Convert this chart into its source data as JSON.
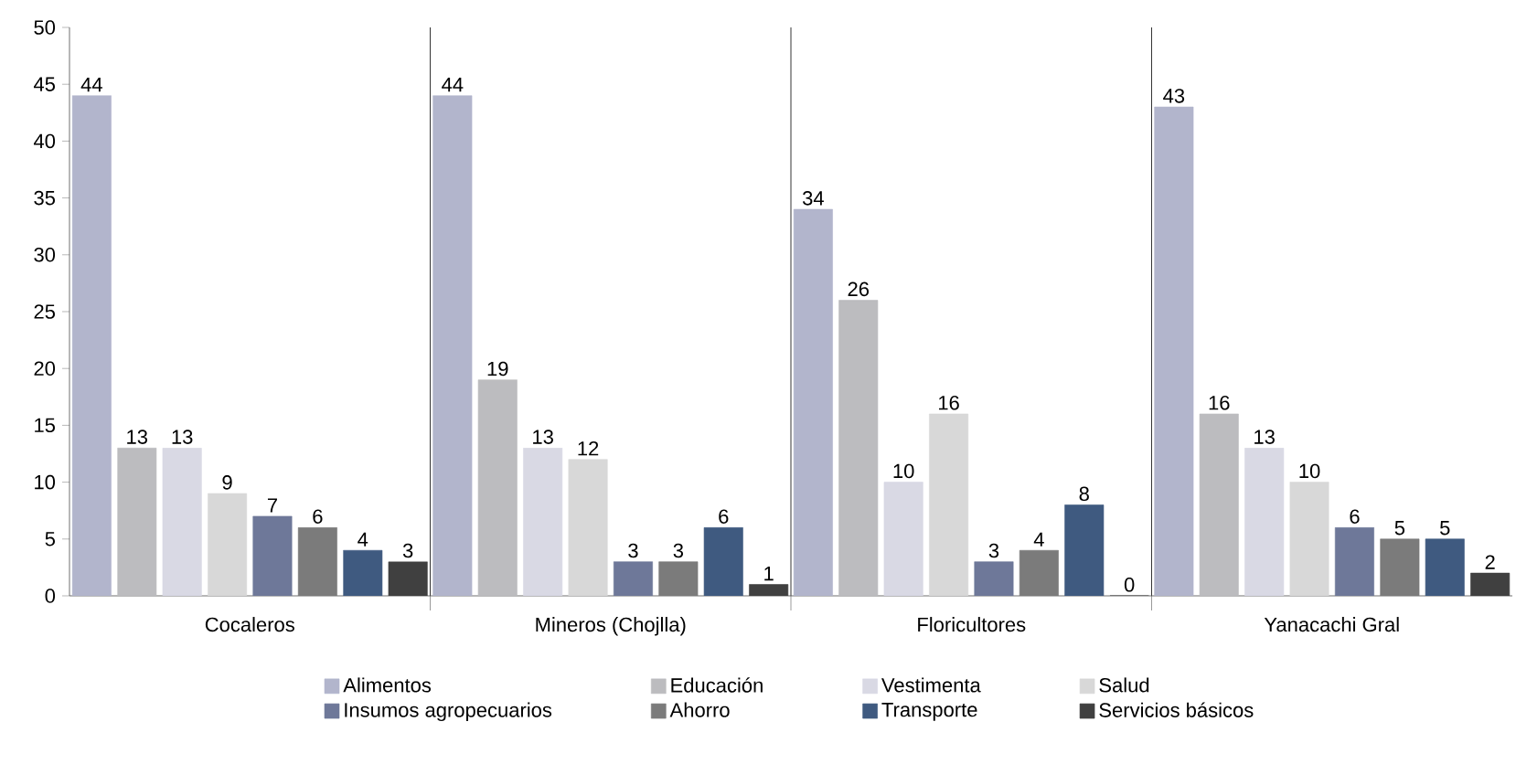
{
  "chart_data": {
    "type": "bar",
    "categories": [
      "Cocaleros",
      "Mineros (Chojlla)",
      "Floricultores",
      "Yanacachi Gral"
    ],
    "series": [
      {
        "name": "Alimentos",
        "color": "#b2b5cc",
        "values": [
          44,
          44,
          34,
          43
        ]
      },
      {
        "name": "Educación",
        "color": "#bcbcbf",
        "values": [
          13,
          19,
          26,
          16
        ]
      },
      {
        "name": "Vestimenta",
        "color": "#d9d9e4",
        "values": [
          13,
          13,
          10,
          13
        ]
      },
      {
        "name": "Salud",
        "color": "#d8d8d8",
        "values": [
          9,
          12,
          16,
          10
        ]
      },
      {
        "name": "Insumos agropecuarios",
        "color": "#6e7899",
        "values": [
          7,
          3,
          3,
          6
        ]
      },
      {
        "name": "Ahorro",
        "color": "#7b7b7b",
        "values": [
          6,
          3,
          4,
          5
        ]
      },
      {
        "name": "Transporte",
        "color": "#3f5a80",
        "values": [
          4,
          6,
          8,
          5
        ]
      },
      {
        "name": "Servicios básicos",
        "color": "#404040",
        "values": [
          3,
          1,
          0,
          2
        ]
      }
    ],
    "ylim": [
      0,
      50
    ],
    "yticks": [
      0,
      5,
      10,
      15,
      20,
      25,
      30,
      35,
      40,
      45,
      50
    ],
    "data_labels": true,
    "grid": "x",
    "legend": "bottom"
  }
}
